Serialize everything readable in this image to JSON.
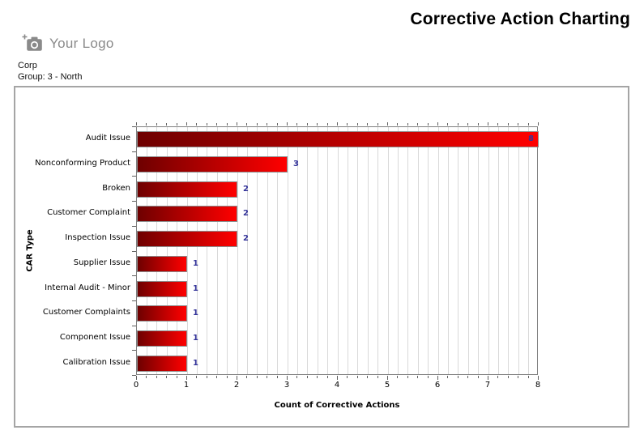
{
  "header": {
    "logo_text": "Your Logo",
    "title": "Corrective Action Charting"
  },
  "meta": {
    "org": "Corp",
    "group": "Group: 3 - North"
  },
  "chart_data": {
    "type": "bar",
    "orientation": "horizontal",
    "xlabel": "Count of Corrective Actions",
    "ylabel": "CAR Type",
    "categories": [
      "Audit Issue",
      "Nonconforming Product",
      "Broken",
      "Customer Complaint",
      "Inspection Issue",
      "Supplier Issue",
      "Internal Audit - Minor",
      "Customer Complaints",
      "Component Issue",
      "Calibration Issue"
    ],
    "values": [
      8,
      3,
      2,
      2,
      2,
      1,
      1,
      1,
      1,
      1
    ],
    "xlim": [
      0,
      8
    ],
    "x_major_tick_step": 1,
    "x_minor_tick_step": 0.2,
    "grid": true,
    "legend": "none",
    "colors": {
      "bar_gradient_start": "#6e0000",
      "bar_gradient_end": "#ff0000",
      "bar_border": "#8c8c8c",
      "value_label": "#333399",
      "gridline": "#d9d9d9",
      "plot_border": "#808080",
      "logo_gray": "#8a8a8a"
    }
  }
}
